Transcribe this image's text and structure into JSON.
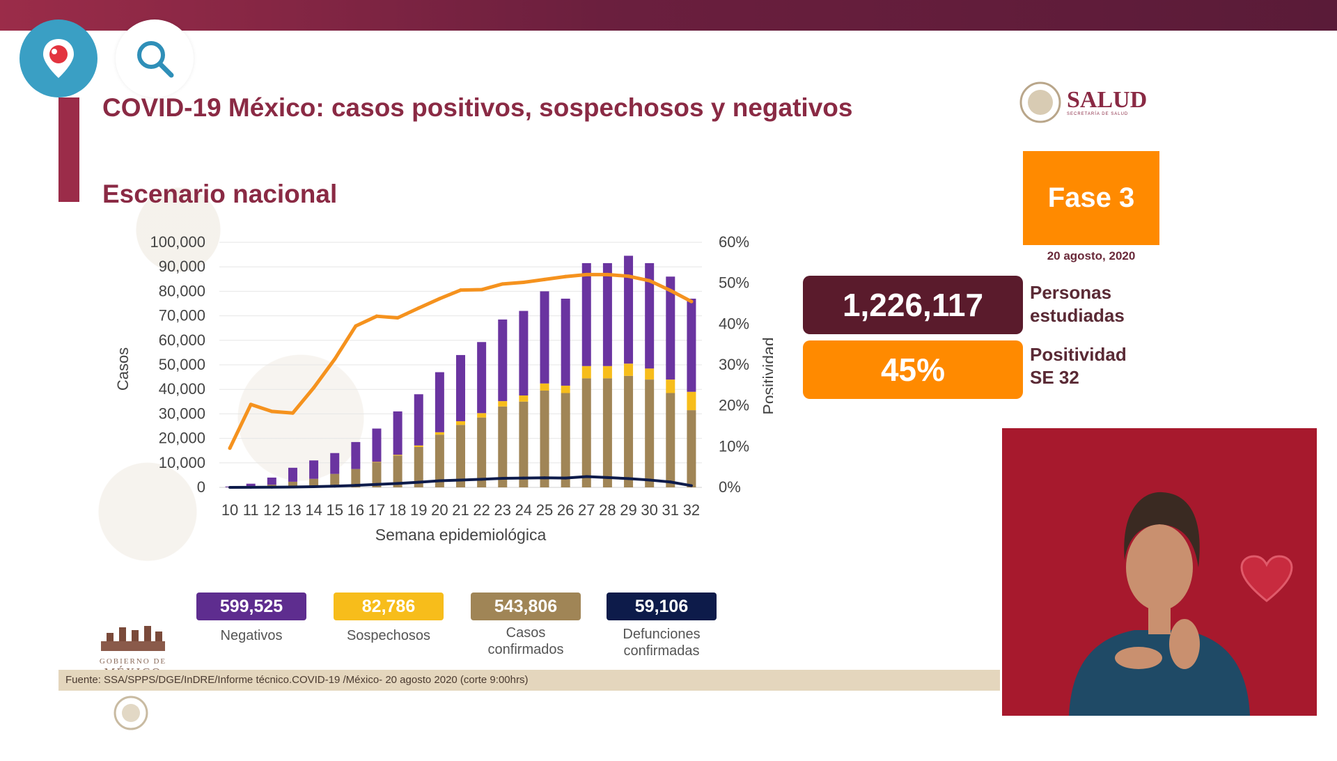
{
  "header": {
    "title": "COVID-19 México: casos positivos, sospechosos y negativos",
    "subtitle": "Escenario nacional"
  },
  "brand": {
    "name": "SALUD",
    "tagline": "SECRETARÍA DE SALUD",
    "gov_lines": [
      "GOBIERNO DE",
      "MÉXICO"
    ]
  },
  "phase": {
    "label": "Fase 3",
    "date": "20 agosto, 2020"
  },
  "stats": {
    "studied": {
      "value": "1,226,117",
      "label_lines": [
        "Personas",
        "estudiadas"
      ]
    },
    "positivity": {
      "value": "45%",
      "label_lines": [
        "Positividad",
        "SE 32"
      ]
    }
  },
  "kpis": [
    {
      "value": "599,525",
      "label_lines": [
        "Negativos"
      ],
      "color": "#5e2d8f"
    },
    {
      "value": "82,786",
      "label_lines": [
        "Sospechosos"
      ],
      "color": "#f7bd1b"
    },
    {
      "value": "543,806",
      "label_lines": [
        "Casos",
        "confirmados"
      ],
      "color": "#a08556"
    },
    {
      "value": "59,106",
      "label_lines": [
        "Defunciones",
        "confirmadas"
      ],
      "color": "#0d1b4a"
    }
  ],
  "footer": {
    "source": "Fuente: SSA/SPPS/DGE/InDRE/Informe técnico.COVID-19 /México- 20 agosto 2020 (corte 9:00hrs)"
  },
  "icons": {
    "periscope": "periscope-pin-icon",
    "search": "search-icon",
    "heart": "heart-icon"
  },
  "colors": {
    "brand": "#8a2a44",
    "orange": "#ff8a00",
    "dark_box": "#5a1b2c",
    "negativos": "#6a34a0",
    "sospechosos": "#f7bd1b",
    "confirmados": "#a08556",
    "positividad": "#f5921e",
    "defunciones": "#0d1b4a"
  },
  "chart_data": {
    "type": "bar",
    "stacked": true,
    "xlabel": "Semana epidemiológica",
    "ylabel": "Casos",
    "ylabel_right": "Positividad",
    "categories": [
      "10",
      "11",
      "12",
      "13",
      "14",
      "15",
      "16",
      "17",
      "18",
      "19",
      "20",
      "21",
      "22",
      "23",
      "24",
      "25",
      "26",
      "27",
      "28",
      "29",
      "30",
      "31",
      "32"
    ],
    "ylim": [
      0,
      100000
    ],
    "yticks": [
      "0",
      "10,000",
      "20,000",
      "30,000",
      "40,000",
      "50,000",
      "60,000",
      "70,000",
      "80,000",
      "90,000",
      "100,000"
    ],
    "ylim_right": [
      0,
      60
    ],
    "yticks_right": [
      "0%",
      "10%",
      "20%",
      "30%",
      "40%",
      "50%",
      "60%"
    ],
    "series": [
      {
        "name": "Casos confirmados",
        "type": "bar",
        "values": [
          50,
          400,
          1100,
          2300,
          3500,
          5500,
          7500,
          10200,
          13000,
          16500,
          21500,
          25500,
          28500,
          33000,
          35000,
          39500,
          38500,
          44500,
          44500,
          45500,
          44000,
          38500,
          31500
        ]
      },
      {
        "name": "Sospechosos",
        "type": "bar",
        "values": [
          0,
          0,
          0,
          0,
          0,
          0,
          0,
          200,
          300,
          600,
          1000,
          1500,
          1800,
          2200,
          2500,
          2900,
          3000,
          5000,
          5000,
          5000,
          4500,
          5500,
          7500
        ]
      },
      {
        "name": "Negativos",
        "type": "bar",
        "values": [
          300,
          1100,
          2900,
          5700,
          7500,
          8500,
          11000,
          13600,
          17700,
          20900,
          24500,
          27000,
          29000,
          33300,
          34500,
          37600,
          35500,
          42000,
          42000,
          44000,
          43000,
          42000,
          38000
        ]
      },
      {
        "name": "Positividad",
        "type": "line",
        "axis": "right",
        "values": [
          9.6,
          20.3,
          18.6,
          18.2,
          24.4,
          31.4,
          39.5,
          41.9,
          41.5,
          43.9,
          46.2,
          48.3,
          48.4,
          49.8,
          50.2,
          50.9,
          51.6,
          52.1,
          52.1,
          51.7,
          50.6,
          48.2,
          45.5
        ]
      },
      {
        "name": "Defunciones",
        "type": "line",
        "values": [
          0,
          20,
          80,
          150,
          300,
          500,
          800,
          1200,
          1600,
          2100,
          2700,
          3000,
          3300,
          3700,
          3800,
          3900,
          3800,
          4400,
          4000,
          3600,
          3000,
          2200,
          700
        ]
      }
    ]
  }
}
